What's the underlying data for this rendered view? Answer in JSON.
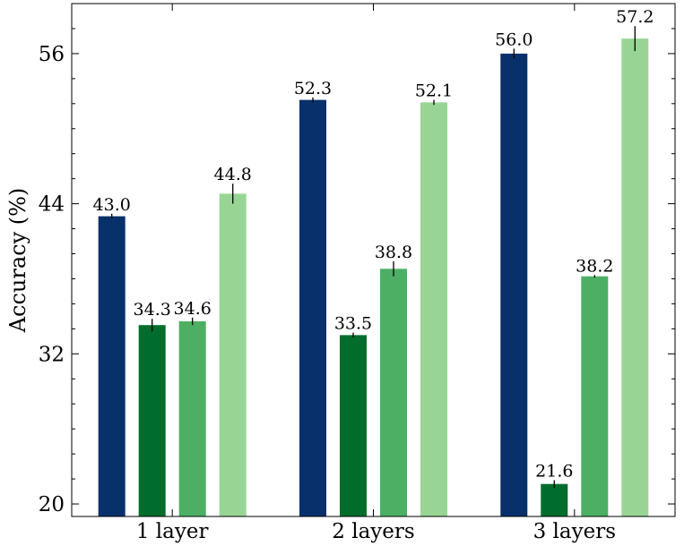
{
  "chart_data": {
    "type": "bar",
    "ylabel": "Accuracy (%)",
    "categories": [
      "1 layer",
      "2 layers",
      "3 layers"
    ],
    "ylim": [
      19,
      60
    ],
    "yticks": [
      20,
      32,
      44,
      56
    ],
    "grid": false,
    "legend": "none",
    "series": [
      {
        "color": "#08306b",
        "values": [
          43.0,
          52.3,
          56.0
        ],
        "errors": [
          0.2,
          0.2,
          0.4
        ],
        "labels": [
          "43.0",
          "52.3",
          "56.0"
        ]
      },
      {
        "color": "#006d2c",
        "values": [
          34.3,
          33.5,
          21.6
        ],
        "errors": [
          0.5,
          0.2,
          0.3
        ],
        "labels": [
          "34.3",
          "33.5",
          "21.6"
        ]
      },
      {
        "color": "#4caf63",
        "values": [
          34.6,
          38.8,
          38.2
        ],
        "errors": [
          0.3,
          0.6,
          0.1
        ],
        "labels": [
          "34.6",
          "38.8",
          "38.2"
        ]
      },
      {
        "color": "#98d594",
        "values": [
          44.8,
          52.1,
          57.2
        ],
        "errors": [
          0.8,
          0.2,
          1.0
        ],
        "labels": [
          "44.8",
          "52.1",
          "57.2"
        ]
      }
    ]
  }
}
